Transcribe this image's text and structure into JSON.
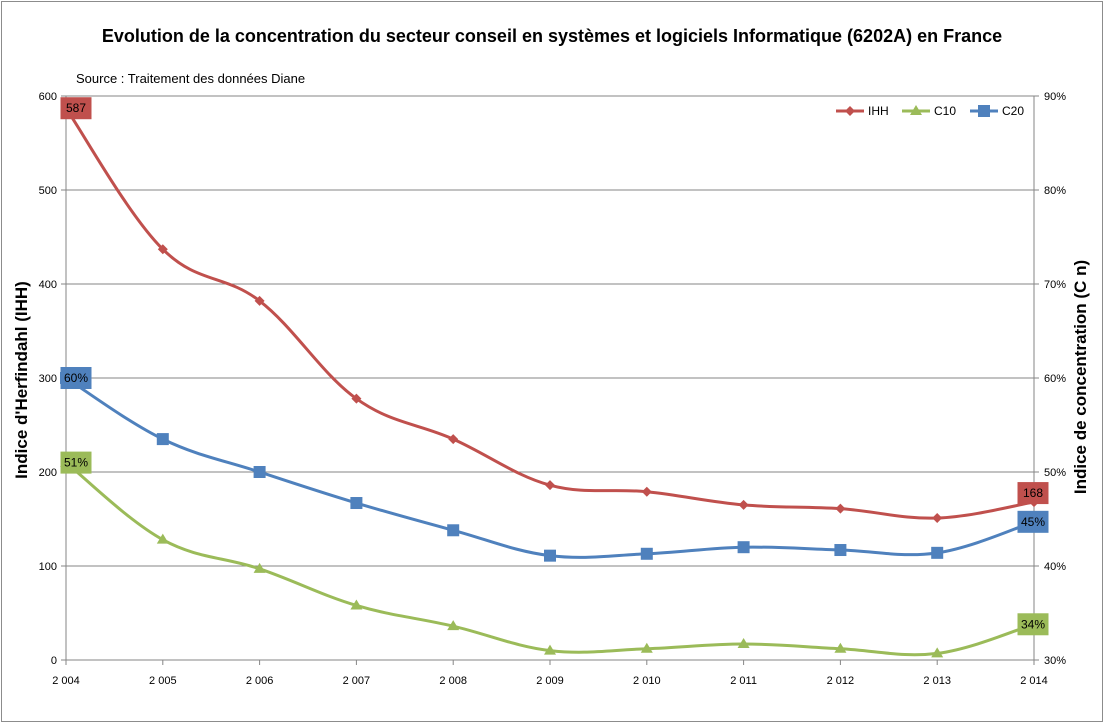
{
  "chart_data": {
    "type": "line",
    "title": "Evolution de la concentration du secteur conseil en systèmes et logiciels Informatique (6202A) en France",
    "subtitle": "Source : Traitement des données Diane",
    "categories": [
      "2 004",
      "2 005",
      "2 006",
      "2 007",
      "2 008",
      "2 009",
      "2 010",
      "2 011",
      "2 012",
      "2 013",
      "2 014"
    ],
    "ylabel": "Indice d'Herfindahl (IHH)",
    "y2label": "Indice de concentration (C n)",
    "ylim": [
      0,
      600
    ],
    "y2lim": [
      30,
      90
    ],
    "yticks": [
      "0",
      "100",
      "200",
      "300",
      "400",
      "500",
      "600"
    ],
    "y2ticks": [
      "30%",
      "40%",
      "50%",
      "60%",
      "70%",
      "80%",
      "90%"
    ],
    "grid": "horizontal",
    "legend_position": "top-right",
    "series": [
      {
        "name": "IHH",
        "axis": "left",
        "color": "#c0504d",
        "marker": "diamond",
        "values": [
          587,
          437,
          382,
          278,
          235,
          186,
          179,
          165,
          161,
          151,
          168
        ]
      },
      {
        "name": "C10",
        "axis": "right",
        "color": "#9bbb59",
        "marker": "triangle",
        "values": [
          51,
          42.8,
          39.7,
          35.8,
          33.6,
          31,
          31.2,
          31.7,
          31.2,
          30.7,
          33.8
        ]
      },
      {
        "name": "C20",
        "axis": "right",
        "color": "#4f81bd",
        "marker": "square",
        "values": [
          60,
          53.5,
          50,
          46.7,
          43.8,
          41.1,
          41.3,
          42,
          41.7,
          41.4,
          44.7
        ]
      }
    ],
    "data_labels": [
      {
        "series": 0,
        "index": 0,
        "text": "587"
      },
      {
        "series": 0,
        "index": 10,
        "text": "168"
      },
      {
        "series": 2,
        "index": 0,
        "text": "60%"
      },
      {
        "series": 2,
        "index": 10,
        "text": "45%"
      },
      {
        "series": 1,
        "index": 0,
        "text": "51%"
      },
      {
        "series": 1,
        "index": 10,
        "text": "34%"
      }
    ]
  }
}
